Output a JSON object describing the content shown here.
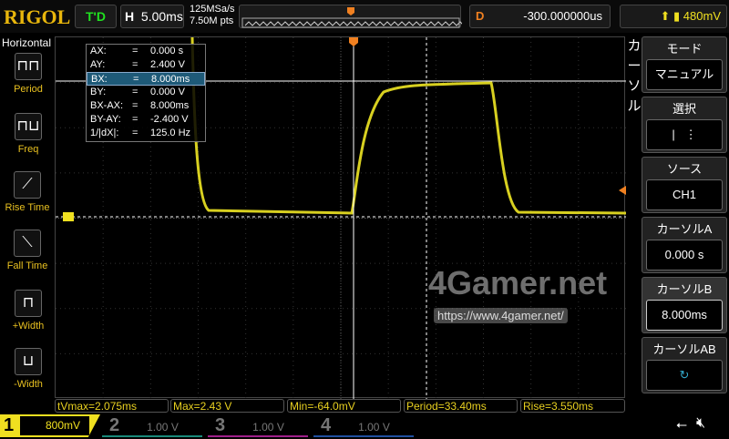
{
  "header": {
    "logo": "RIGOL",
    "trigger_status": "T'D",
    "timebase_label": "H",
    "timebase": "5.00ms",
    "sample_rate": "125MSa/s",
    "memory_depth": "7.50M pts",
    "delay_label": "D",
    "delay": "-300.000000us",
    "trigger_level": "480mV"
  },
  "sidebar": {
    "title": "Horizontal",
    "items": [
      {
        "label": "Period",
        "icon": "period-icon"
      },
      {
        "label": "Freq",
        "icon": "freq-icon"
      },
      {
        "label": "Rise Time",
        "icon": "rise-time-icon"
      },
      {
        "label": "Fall Time",
        "icon": "fall-time-icon"
      },
      {
        "label": "+Width",
        "icon": "pos-width-icon"
      },
      {
        "label": "-Width",
        "icon": "neg-width-icon"
      }
    ]
  },
  "cursor_table": [
    {
      "k": "AX:",
      "v": "0.000 s"
    },
    {
      "k": "AY:",
      "v": "2.400 V"
    },
    {
      "k": "BX:",
      "v": "8.000ms"
    },
    {
      "k": "BY:",
      "v": "0.000 V"
    },
    {
      "k": "BX-AX:",
      "v": "8.000ms"
    },
    {
      "k": "BY-AY:",
      "v": "-2.400 V"
    },
    {
      "k": "1/|dX|:",
      "v": "125.0 Hz"
    }
  ],
  "right_menu": {
    "side_title": "カーソル",
    "mode_title": "モード",
    "mode_value": "マニュアル",
    "select_title": "選択",
    "source_title": "ソース",
    "source_value": "CH1",
    "cursor_a_title": "カーソルA",
    "cursor_a_value": "0.000 s",
    "cursor_b_title": "カーソルB",
    "cursor_b_value": "8.000ms",
    "cursor_ab_title": "カーソルAB"
  },
  "measurements": [
    "tVmax=2.075ms",
    "Max=2.43 V",
    "Min=-64.0mV",
    "Period=33.40ms",
    "Rise=3.550ms"
  ],
  "channels": [
    {
      "num": "1",
      "scale": "800mV",
      "color": "#f0e020"
    },
    {
      "num": "2",
      "scale": "1.00 V",
      "color": "#1a8a7a"
    },
    {
      "num": "3",
      "scale": "1.00 V",
      "color": "#a0208a"
    },
    {
      "num": "4",
      "scale": "1.00 V",
      "color": "#2050a0"
    }
  ],
  "watermark": {
    "site": "4Gamer.net",
    "url": "https://www.4gamer.net/"
  },
  "colors": {
    "trace": "#d8d020",
    "cursor": "#ffffff",
    "accent": "#f08020"
  }
}
